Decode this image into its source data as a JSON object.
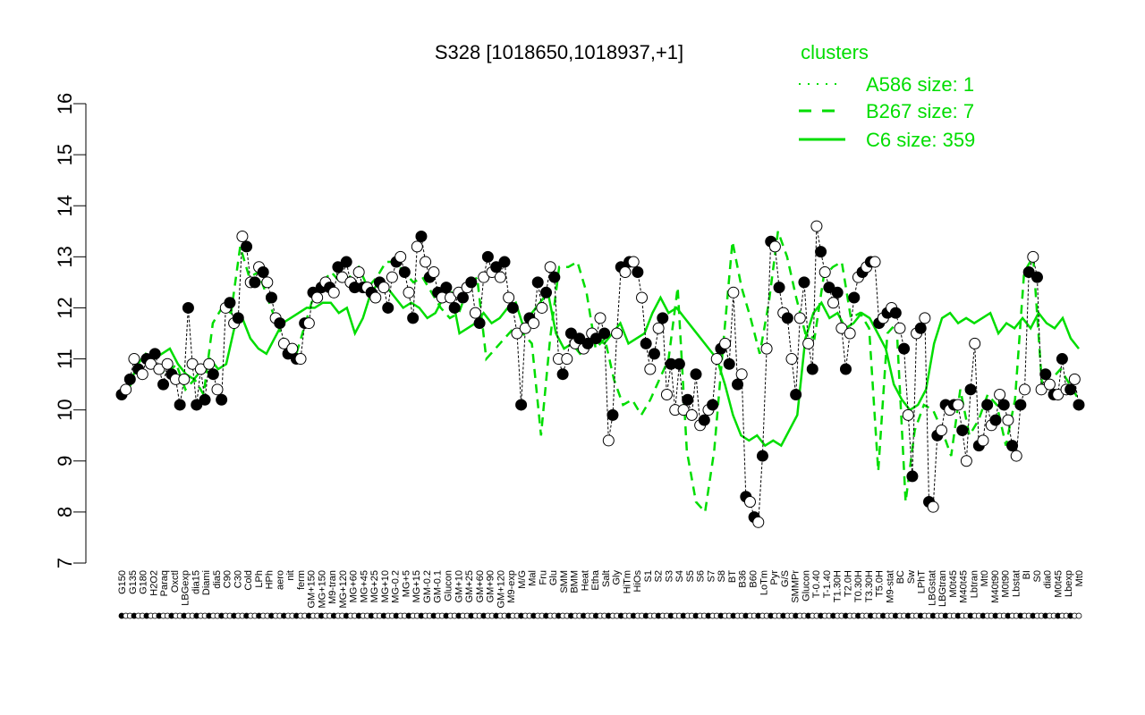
{
  "chart_data": {
    "type": "line",
    "title": "S328 [1018650,1018937,+1]",
    "xlabel": "",
    "ylabel": "",
    "ylim": [
      7,
      16
    ],
    "yticks": [
      7,
      8,
      9,
      10,
      11,
      12,
      13,
      14,
      15,
      16
    ],
    "x_tick_labels": [
      "G150",
      "G135",
      "G180",
      "H2O2",
      "Paraq",
      "Oxctl",
      "LBGexp",
      "dia15",
      "Diami",
      "dia5",
      "C90",
      "C30",
      "Cold",
      "LPh",
      "HPh",
      "aero",
      "nit",
      "ferm",
      "GM+150",
      "MG+150",
      "M9-tran",
      "MG+120",
      "MG+60",
      "MG+45",
      "MG+25",
      "MG+10",
      "MG-0.2",
      "MG+5",
      "MG+15",
      "GM-0.2",
      "GM-0.1",
      "Glucon",
      "GM+10",
      "GM+25",
      "GM+60",
      "GM+90",
      "GM+120",
      "M9-exp",
      "M/G",
      "Mal",
      "Fru",
      "Glu",
      "SMM",
      "BMM",
      "Heat",
      "Etha",
      "Salt",
      "Gly",
      "HiTm",
      "HiOs",
      "S1",
      "S2",
      "S3",
      "S4",
      "S5",
      "S6",
      "S7",
      "S8",
      "BT",
      "B36",
      "B60",
      "LoTm",
      "Pyr",
      "G/S",
      "SMMPr",
      "Glucon",
      "T-0.40",
      "T-1.40",
      "T1.30H",
      "T2.0H",
      "T0.30H",
      "T3.30H",
      "T5.0H",
      "M9-stat",
      "BC",
      "Sw",
      "LPhT",
      "LBGstat",
      "LBGtran",
      "M0t45",
      "M40t45",
      "Lbtran",
      "Mt0",
      "M40t90",
      "M0t90",
      "Lbstat",
      "BI",
      "S0",
      "dia0",
      "M0t45",
      "Lbexp",
      "Mt0"
    ],
    "legend": {
      "title": "clusters",
      "placement": "top-right",
      "color": "#00dd00",
      "entries": [
        {
          "label": "A586 size: 1",
          "style": "dotted"
        },
        {
          "label": "B267 size: 7",
          "style": "dashed"
        },
        {
          "label": "C6 size: 359",
          "style": "solid"
        }
      ]
    },
    "series_color": "#00dd00",
    "points_y": [
      10.3,
      10.4,
      10.6,
      11.0,
      10.8,
      10.7,
      11.0,
      10.9,
      11.1,
      10.8,
      10.5,
      10.9,
      10.7,
      10.6,
      10.1,
      10.6,
      12.0,
      10.9,
      10.1,
      10.8,
      10.2,
      10.9,
      10.7,
      10.4,
      10.2,
      12.0,
      12.1,
      11.7,
      11.8,
      13.4,
      13.2,
      12.5,
      12.5,
      12.8,
      12.7,
      12.5,
      12.2,
      11.8,
      11.7,
      11.3,
      11.1,
      11.2,
      11.0,
      11.0,
      11.7,
      11.7,
      12.3,
      12.2,
      12.4,
      12.5,
      12.4,
      12.3,
      12.8,
      12.6,
      12.9,
      12.5,
      12.4,
      12.7,
      12.4,
      12.4,
      12.3,
      12.2,
      12.5,
      12.4,
      12.0,
      12.6,
      12.9,
      13.0,
      12.7,
      12.3,
      11.8,
      13.2,
      13.4,
      12.9,
      12.6,
      12.7,
      12.3,
      12.2,
      12.4,
      12.2,
      12.0,
      12.3,
      12.2,
      12.4,
      12.5,
      11.9,
      11.7,
      12.6,
      13.0,
      12.7,
      12.8,
      12.6,
      12.9,
      12.2,
      12.0,
      11.5,
      10.1,
      11.6,
      11.8,
      11.7,
      12.5,
      12.0,
      12.3,
      12.8,
      12.6,
      11.0,
      10.7,
      11.0,
      11.5,
      11.3,
      11.4,
      11.2,
      11.3,
      11.5,
      11.4,
      11.8,
      11.5,
      9.4,
      9.9,
      11.5,
      12.8,
      12.7,
      12.9,
      12.9,
      12.7,
      12.2,
      11.3,
      10.8,
      11.1,
      11.6,
      11.8,
      10.3,
      10.9,
      10.0,
      10.9,
      10.0,
      10.2,
      9.9,
      10.7,
      9.7,
      9.8,
      10.0,
      10.1,
      11.0,
      11.2,
      11.3,
      10.9,
      12.3,
      10.5,
      10.7,
      8.3,
      8.2,
      7.9,
      7.8,
      9.1,
      11.2,
      13.3,
      13.2,
      12.4,
      11.9,
      11.8,
      11.0,
      10.3,
      11.8,
      12.5,
      11.3,
      10.8,
      13.6,
      13.1,
      12.7,
      12.4,
      12.1,
      12.3,
      11.6,
      10.8,
      11.5,
      12.2,
      12.6,
      12.7,
      12.8,
      12.9,
      12.9,
      11.7,
      11.8,
      11.9,
      12.0,
      11.9,
      11.6,
      11.2,
      9.9,
      8.7,
      11.5,
      11.6,
      11.8,
      8.2,
      8.1,
      9.5,
      9.6,
      10.1,
      10.0,
      10.1,
      10.1,
      9.6,
      9.0,
      10.4,
      11.3,
      9.3,
      9.4,
      10.1,
      9.7,
      9.8,
      10.3,
      10.1,
      9.8,
      9.3,
      9.1,
      10.1,
      10.4,
      12.7,
      13.0,
      12.6,
      10.4,
      10.7,
      10.5,
      10.3,
      10.3,
      11.0,
      10.4,
      10.4,
      10.6,
      10.1
    ],
    "series": [
      {
        "style": "solid",
        "values": [
          10.3,
          10.5,
          10.9,
          11.1,
          11.0,
          11.1,
          11.2,
          10.9,
          10.7,
          10.6,
          10.8,
          11.0,
          10.8,
          10.9,
          11.6,
          11.8,
          11.4,
          11.2,
          11.1,
          11.4,
          11.7,
          11.8,
          11.9,
          12.0,
          12.0,
          12.1,
          12.1,
          11.9,
          12.0,
          11.5,
          11.8,
          12.3,
          12.5,
          12.4,
          12.2,
          12.0,
          12.1,
          12.0,
          11.8,
          11.9,
          12.2,
          12.3,
          11.5,
          11.6,
          11.7,
          11.9,
          11.7,
          11.8,
          12.0,
          12.1,
          11.6,
          11.9,
          12.1,
          12.3,
          11.5,
          11.2,
          11.3,
          11.1,
          11.2,
          11.4,
          11.3,
          11.5,
          11.7,
          11.3,
          11.4,
          11.5,
          11.9,
          12.2,
          11.9,
          12.0,
          11.8,
          11.6,
          11.4,
          11.2,
          11.0,
          10.5,
          9.9,
          9.5,
          9.4,
          9.5,
          9.3,
          9.4,
          9.3,
          9.6,
          9.9,
          11.4,
          11.9,
          12.1,
          11.8,
          11.9,
          11.6,
          11.7,
          11.9,
          11.8,
          11.5,
          11.2,
          10.5,
          10.2,
          10.0,
          10.1,
          10.4,
          11.3,
          11.8,
          11.9,
          11.7,
          11.8,
          11.7,
          11.8,
          11.9,
          11.5,
          11.7,
          11.6,
          11.8,
          11.6,
          11.9,
          11.7,
          11.6,
          11.8,
          11.4,
          11.2
        ]
      },
      {
        "style": "dashed",
        "values": [
          10.2,
          10.5,
          10.8,
          11.0,
          10.8,
          10.7,
          10.9,
          10.4,
          10.6,
          10.3,
          11.7,
          12.0,
          11.9,
          13.2,
          12.6,
          12.7,
          12.2,
          11.7,
          11.3,
          11.0,
          11.6,
          12.2,
          12.5,
          12.7,
          12.5,
          12.6,
          12.8,
          12.4,
          12.6,
          12.9,
          12.9,
          12.7,
          12.5,
          12.6,
          12.3,
          12.0,
          11.8,
          11.9,
          12.4,
          12.6,
          11.0,
          11.2,
          11.4,
          11.6,
          11.5,
          11.3,
          9.5,
          11.4,
          12.8,
          12.8,
          12.9,
          12.3,
          11.2,
          11.4,
          10.6,
          10.1,
          10.2,
          9.9,
          10.2,
          10.6,
          11.0,
          12.4,
          9.2,
          8.2,
          8.0,
          9.2,
          11.3,
          13.3,
          12.4,
          11.8,
          11.1,
          12.1,
          13.5,
          13.0,
          12.2,
          11.5,
          11.4,
          12.6,
          12.8,
          12.9,
          11.8,
          11.9,
          11.6,
          8.8,
          11.5,
          11.7,
          8.2,
          9.6,
          10.1,
          10.0,
          9.6,
          9.1,
          10.4,
          9.5,
          9.8,
          10.3,
          10.1,
          9.3,
          10.2,
          12.7,
          13.0,
          10.4,
          10.6,
          10.8,
          10.5,
          10.2
        ]
      }
    ]
  }
}
